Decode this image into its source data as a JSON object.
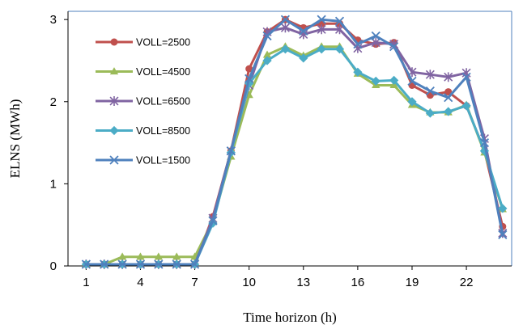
{
  "chart_data": {
    "type": "line",
    "title": "",
    "xlabel": "Time horizon (h)",
    "ylabel": "ELNS (MWh)",
    "x": [
      1,
      2,
      3,
      4,
      5,
      6,
      7,
      8,
      9,
      10,
      11,
      12,
      13,
      14,
      15,
      16,
      17,
      18,
      19,
      20,
      21,
      22,
      23,
      24
    ],
    "x_ticks": [
      "1",
      "4",
      "7",
      "10",
      "13",
      "16",
      "19",
      "22"
    ],
    "x_tick_values": [
      1,
      4,
      7,
      10,
      13,
      16,
      19,
      22
    ],
    "y_ticks": [
      "0",
      "1",
      "2",
      "3"
    ],
    "y_tick_values": [
      0,
      1,
      2,
      3
    ],
    "xlim": [
      0,
      24.5
    ],
    "ylim": [
      0,
      3.1
    ],
    "grid": false,
    "legend_position": "top-left",
    "series": [
      {
        "name": "VOLL=2500",
        "color": "#c0504d",
        "marker": "circle",
        "values": [
          0.02,
          0.02,
          0.02,
          0.02,
          0.02,
          0.02,
          0.02,
          0.6,
          1.4,
          2.4,
          2.85,
          3.0,
          2.9,
          2.95,
          2.95,
          2.75,
          2.7,
          2.72,
          2.2,
          2.08,
          2.12,
          1.95,
          1.4,
          0.48
        ]
      },
      {
        "name": "VOLL=4500",
        "color": "#9bbb59",
        "marker": "triangle",
        "values": [
          0.02,
          0.02,
          0.11,
          0.11,
          0.11,
          0.11,
          0.11,
          0.55,
          1.33,
          2.08,
          2.57,
          2.67,
          2.56,
          2.67,
          2.67,
          2.34,
          2.2,
          2.2,
          1.96,
          1.87,
          1.87,
          1.96,
          1.38,
          0.69
        ]
      },
      {
        "name": "VOLL=6500",
        "color": "#8064a2",
        "marker": "star",
        "values": [
          0.02,
          0.02,
          0.02,
          0.02,
          0.02,
          0.02,
          0.02,
          0.58,
          1.4,
          2.2,
          2.85,
          2.9,
          2.82,
          2.88,
          2.88,
          2.65,
          2.72,
          2.7,
          2.36,
          2.33,
          2.3,
          2.35,
          1.55,
          0.4
        ]
      },
      {
        "name": "VOLL=8500",
        "color": "#4bacc6",
        "marker": "diamond",
        "values": [
          0.02,
          0.02,
          0.02,
          0.02,
          0.02,
          0.02,
          0.02,
          0.52,
          1.38,
          2.22,
          2.5,
          2.64,
          2.53,
          2.64,
          2.64,
          2.36,
          2.25,
          2.26,
          2.0,
          1.86,
          1.88,
          1.95,
          1.4,
          0.7
        ]
      },
      {
        "name": "VOLL=1500",
        "color": "#4f81bd",
        "marker": "x",
        "values": [
          0.02,
          0.02,
          0.02,
          0.02,
          0.02,
          0.02,
          0.02,
          0.55,
          1.4,
          2.28,
          2.8,
          3.0,
          2.86,
          3.0,
          2.98,
          2.7,
          2.8,
          2.67,
          2.25,
          2.13,
          2.05,
          2.3,
          1.5,
          0.38
        ]
      }
    ]
  }
}
